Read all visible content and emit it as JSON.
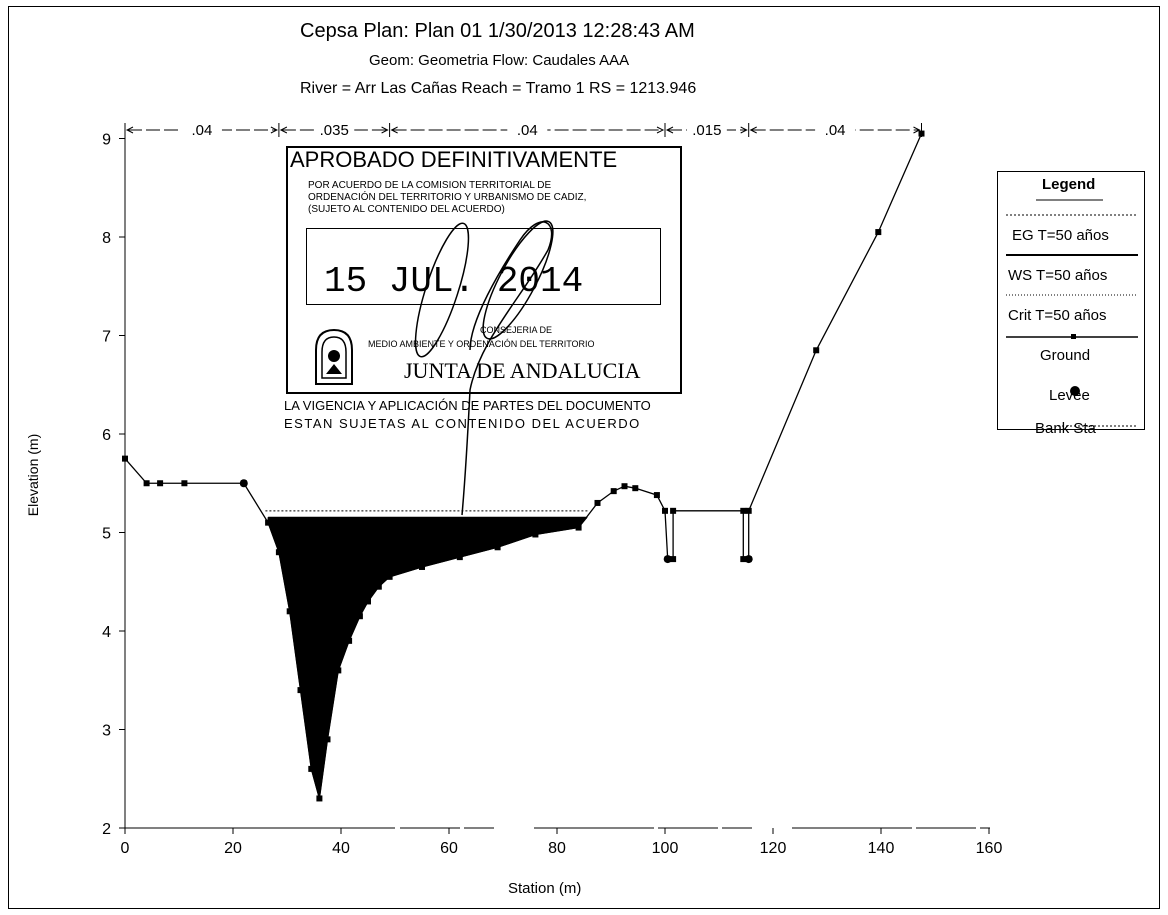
{
  "header": {
    "line1": "Cepsa      Plan: Plan 01     1/30/2013  12:28:43 AM",
    "line2": "Geom: Geometria    Flow: Caudales AAA",
    "line3": "River = Arr Las Cañas   Reach = Tramo 1      RS = 1213.946"
  },
  "chart_data": {
    "type": "area",
    "title": "Cepsa Plan: Plan 01 1/30/2013 12:28:43 AM",
    "xlabel": "Station (m)",
    "ylabel": "Elevation (m)",
    "xlim": [
      0,
      160
    ],
    "ylim": [
      2,
      9.3
    ],
    "x_ticks": [
      0,
      20,
      40,
      60,
      80,
      100,
      120,
      140,
      160
    ],
    "y_ticks": [
      2,
      3,
      4,
      5,
      6,
      7,
      8,
      9
    ],
    "manning_n": [
      {
        "label": ".04",
        "from": 0,
        "to": 28.5
      },
      {
        "label": ".035",
        "from": 28.5,
        "to": 49
      },
      {
        "label": ".04",
        "from": 49,
        "to": 100
      },
      {
        "label": ".015",
        "from": 100,
        "to": 115.5
      },
      {
        "label": ".04",
        "from": 115.5,
        "to": 147.5
      }
    ],
    "series": [
      {
        "name": "EG T=50 años",
        "values": [
          {
            "x": 26,
            "y": 5.22
          },
          {
            "x": 86,
            "y": 5.22
          }
        ]
      },
      {
        "name": "WS T=50 años",
        "values": [
          {
            "x": 26.5,
            "y": 5.15
          },
          {
            "x": 85.5,
            "y": 5.15
          }
        ]
      },
      {
        "name": "Ground",
        "values": [
          {
            "x": 0,
            "y": 5.75
          },
          {
            "x": 4,
            "y": 5.5
          },
          {
            "x": 6.5,
            "y": 5.5
          },
          {
            "x": 11,
            "y": 5.5
          },
          {
            "x": 22,
            "y": 5.5
          },
          {
            "x": 26.5,
            "y": 5.1
          },
          {
            "x": 28.5,
            "y": 4.8
          },
          {
            "x": 30.5,
            "y": 4.2
          },
          {
            "x": 32.5,
            "y": 3.4
          },
          {
            "x": 34.5,
            "y": 2.6
          },
          {
            "x": 36,
            "y": 2.3
          },
          {
            "x": 37.5,
            "y": 2.9
          },
          {
            "x": 39.5,
            "y": 3.6
          },
          {
            "x": 41.5,
            "y": 3.9
          },
          {
            "x": 43.5,
            "y": 4.15
          },
          {
            "x": 45,
            "y": 4.3
          },
          {
            "x": 47,
            "y": 4.45
          },
          {
            "x": 49,
            "y": 4.55
          },
          {
            "x": 55,
            "y": 4.65
          },
          {
            "x": 62,
            "y": 4.75
          },
          {
            "x": 69,
            "y": 4.85
          },
          {
            "x": 76,
            "y": 4.98
          },
          {
            "x": 84,
            "y": 5.05
          },
          {
            "x": 87.5,
            "y": 5.3
          },
          {
            "x": 90.5,
            "y": 5.42
          },
          {
            "x": 92.5,
            "y": 5.47
          },
          {
            "x": 94.5,
            "y": 5.45
          },
          {
            "x": 98.5,
            "y": 5.38
          },
          {
            "x": 100,
            "y": 5.22
          },
          {
            "x": 100.5,
            "y": 4.73
          },
          {
            "x": 101.5,
            "y": 4.73
          },
          {
            "x": 101.5,
            "y": 5.22
          },
          {
            "x": 114.5,
            "y": 5.22
          },
          {
            "x": 114.5,
            "y": 4.73
          },
          {
            "x": 115.5,
            "y": 4.73
          },
          {
            "x": 115.5,
            "y": 5.22
          },
          {
            "x": 128,
            "y": 6.85
          },
          {
            "x": 139.5,
            "y": 8.05
          },
          {
            "x": 147.5,
            "y": 9.05
          }
        ]
      },
      {
        "name": "Bank Sta",
        "values": [
          {
            "x": 22,
            "y": 5.5
          },
          {
            "x": 100.5,
            "y": 4.73
          },
          {
            "x": 115.5,
            "y": 4.73
          }
        ]
      }
    ],
    "water": {
      "surface_elevation": 5.15,
      "from": 26.5,
      "to": 85.5
    }
  },
  "legend": {
    "title": "Legend",
    "items": [
      "EG T=50 años",
      "WS T=50 años",
      "Crit T=50 años",
      "Ground",
      "Levee",
      "Bank Sta"
    ]
  },
  "stamp": {
    "title": "APROBADO DEFINITIVAMENTE",
    "line1": "POR ACUERDO DE LA COMISION TERRITORIAL DE",
    "line2": "ORDENACIÓN DEL TERRITORIO Y URBANISMO DE CADIZ,",
    "line3": "(SUJETO AL CONTENIDO DEL ACUERDO)",
    "date": "15 JUL. 2014",
    "dept1": "CONSEJERIA DE",
    "dept2": "MEDIO AMBIENTE Y ORDENACIÓN DEL TERRITORIO",
    "org": "JUNTA DE ANDALUCIA",
    "note1": "LA VIGENCIA Y APLICACIÓN DE PARTES DEL DOCUMENTO",
    "note2": "ESTAN SUJETAS AL CONTENIDO DEL ACUERDO"
  }
}
